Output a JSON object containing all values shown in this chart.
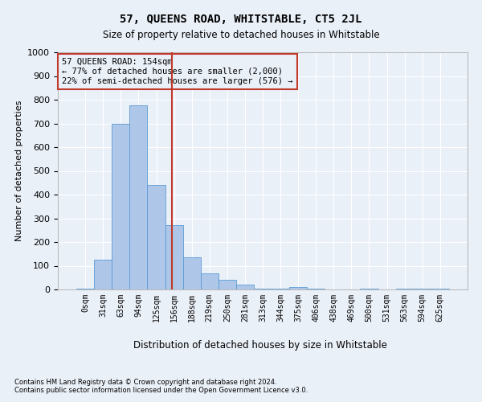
{
  "title": "57, QUEENS ROAD, WHITSTABLE, CT5 2JL",
  "subtitle": "Size of property relative to detached houses in Whitstable",
  "xlabel_bottom": "Distribution of detached houses by size in Whitstable",
  "ylabel": "Number of detached properties",
  "footnote1": "Contains HM Land Registry data © Crown copyright and database right 2024.",
  "footnote2": "Contains public sector information licensed under the Open Government Licence v3.0.",
  "bar_labels": [
    "0sqm",
    "31sqm",
    "63sqm",
    "94sqm",
    "125sqm",
    "156sqm",
    "188sqm",
    "219sqm",
    "250sqm",
    "281sqm",
    "313sqm",
    "344sqm",
    "375sqm",
    "406sqm",
    "438sqm",
    "469sqm",
    "500sqm",
    "531sqm",
    "563sqm",
    "594sqm",
    "625sqm"
  ],
  "bar_values": [
    5,
    125,
    700,
    775,
    440,
    270,
    135,
    68,
    40,
    22,
    5,
    5,
    10,
    5,
    0,
    0,
    5,
    0,
    5,
    5,
    5
  ],
  "bar_color": "#aec6e8",
  "bar_edge_color": "#5b9bd5",
  "background_color": "#eaf0f8",
  "grid_color": "#ffffff",
  "vline_color": "#c0392b",
  "annotation_text": "57 QUEENS ROAD: 154sqm\n← 77% of detached houses are smaller (2,000)\n22% of semi-detached houses are larger (576) →",
  "annotation_box_color": "#c0392b",
  "ylim": [
    0,
    1000
  ],
  "yticks": [
    0,
    100,
    200,
    300,
    400,
    500,
    600,
    700,
    800,
    900,
    1000
  ],
  "vline_pos": 4.87
}
